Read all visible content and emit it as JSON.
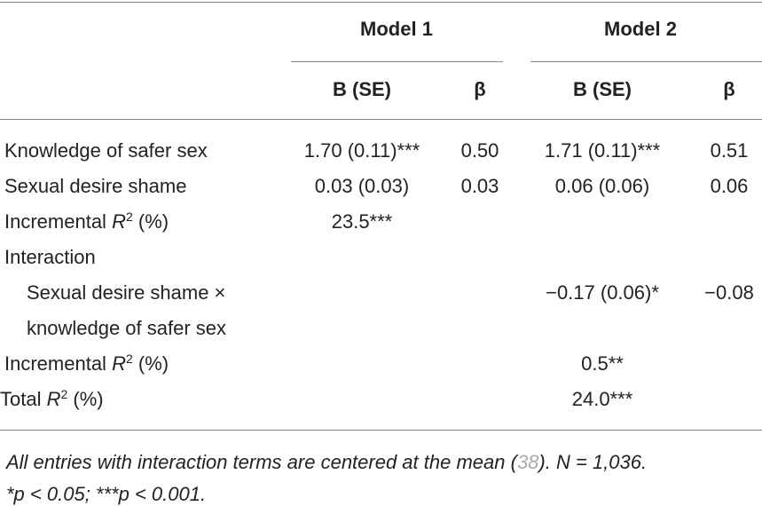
{
  "header": {
    "models": [
      "Model 1",
      "Model 2"
    ],
    "columns": [
      "B (SE)",
      "β",
      "B (SE)",
      "β"
    ]
  },
  "rows": [
    {
      "label": [
        {
          "text": "Knowledge of safer sex"
        }
      ],
      "cells": [
        "1.70 (0.11)***",
        "0.50",
        "1.71 (0.11)***",
        "0.51"
      ]
    },
    {
      "label": [
        {
          "text": "Sexual desire shame"
        }
      ],
      "cells": [
        "0.03 (0.03)",
        "0.03",
        "0.06 (0.06)",
        "0.06"
      ]
    },
    {
      "label": [
        {
          "text": "Incremental "
        },
        {
          "text": "R",
          "style": "italic"
        },
        {
          "text": "2",
          "style": "sup"
        },
        {
          "text": " (%)"
        }
      ],
      "cells": [
        "23.5***",
        null,
        null,
        null
      ]
    },
    {
      "label": [
        {
          "text": "Interaction"
        }
      ],
      "cells": [
        null,
        null,
        null,
        null
      ]
    },
    {
      "label": [
        {
          "text": "Sexual desire shame ×"
        }
      ],
      "indent": true,
      "cells": [
        null,
        null,
        "−0.17 (0.06)*",
        "−0.08"
      ]
    },
    {
      "label": [
        {
          "text": "knowledge of safer sex"
        }
      ],
      "indent": true,
      "cells": [
        null,
        null,
        null,
        null
      ]
    },
    {
      "label": [
        {
          "text": "Incremental "
        },
        {
          "text": "R",
          "style": "italic"
        },
        {
          "text": "2",
          "style": "sup"
        },
        {
          "text": " (%)"
        }
      ],
      "cells": [
        null,
        null,
        "0.5**",
        null
      ]
    },
    {
      "label": [
        {
          "text": "Total "
        },
        {
          "text": "R",
          "style": "italic"
        },
        {
          "text": "2",
          "style": "sup"
        },
        {
          "text": " (%)"
        }
      ],
      "outdent": true,
      "cells": [
        null,
        null,
        "24.0***",
        null
      ]
    }
  ],
  "footnote": [
    [
      {
        "text": "All entries with interaction terms are centered at the mean ("
      },
      {
        "text": "38",
        "color": "#aaaaaa"
      },
      {
        "text": "). N = 1,036."
      }
    ],
    [
      {
        "text": "*p < 0.05; ***p < 0.001."
      }
    ]
  ]
}
